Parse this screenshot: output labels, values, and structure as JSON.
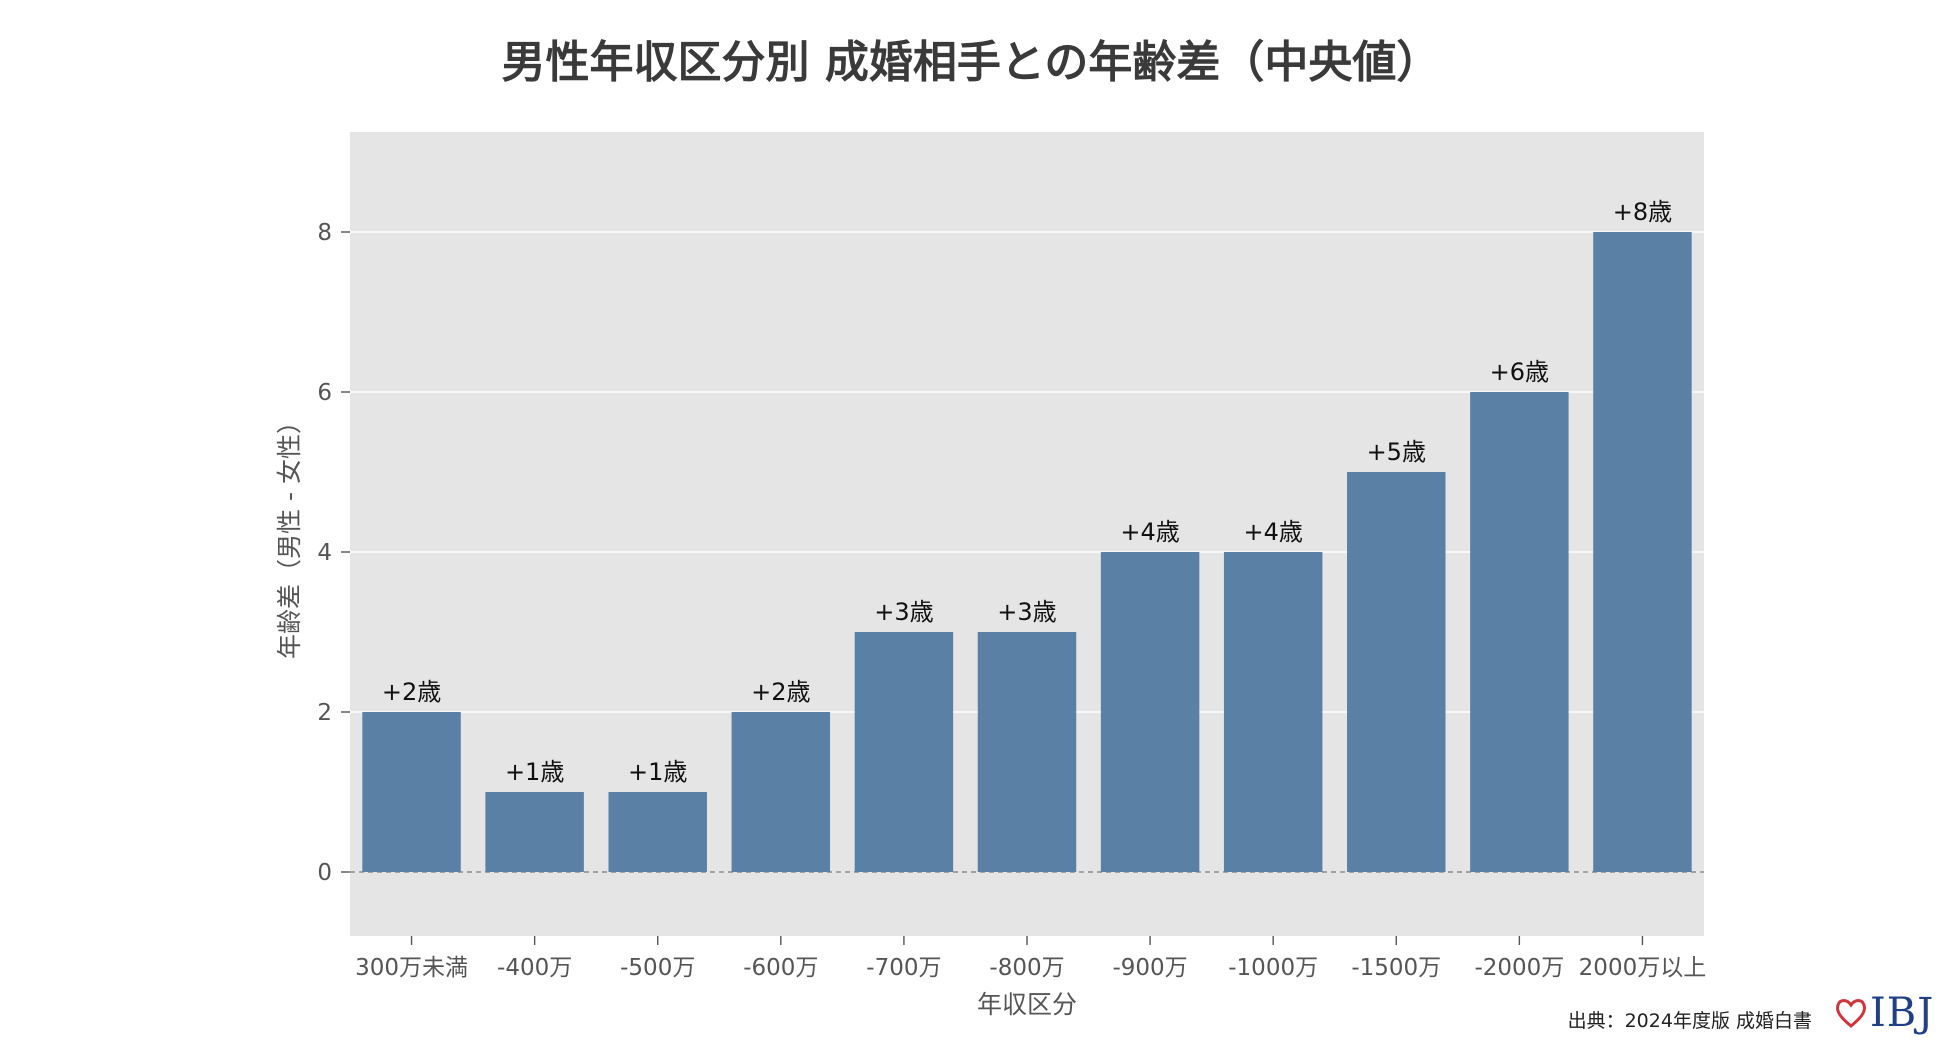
{
  "chart_data": {
    "type": "bar",
    "title": "男性年収区分別 成婚相手との年齢差（中央値）",
    "xlabel": "年収区分",
    "ylabel": "年齢差（男性 - 女性）",
    "categories": [
      "300万未満",
      "-400万",
      "-500万",
      "-600万",
      "-700万",
      "-800万",
      "-900万",
      "-1000万",
      "-1500万",
      "-2000万",
      "2000万以上"
    ],
    "values": [
      2,
      1,
      1,
      2,
      3,
      3,
      4,
      4,
      5,
      6,
      8
    ],
    "data_labels": [
      "+2歳",
      "+1歳",
      "+1歳",
      "+2歳",
      "+3歳",
      "+3歳",
      "+4歳",
      "+4歳",
      "+5歳",
      "+6歳",
      "+8歳"
    ],
    "ylim": [
      -0.8,
      9.25
    ],
    "yticks": [
      0,
      2,
      4,
      6,
      8
    ],
    "grid": true,
    "zero_line": "dashed",
    "bar_color": "#5a80a6",
    "background_color": "#e5e5e5"
  },
  "footer": {
    "source": "出典：2024年度版 成婚白書",
    "logo_text": "IBJ"
  }
}
